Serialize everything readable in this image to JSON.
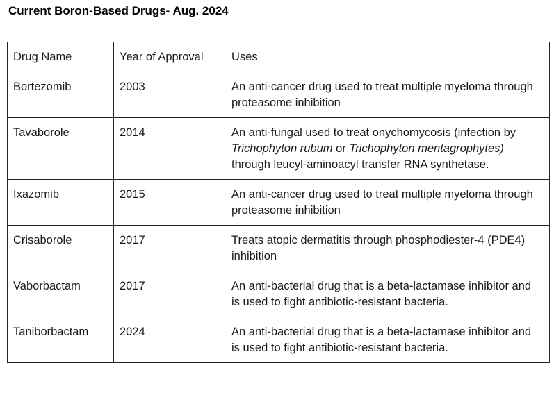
{
  "title": "Current Boron-Based Drugs- Aug. 2024",
  "table": {
    "headers": {
      "name": "Drug Name",
      "year": "Year of Approval",
      "uses": "Uses"
    },
    "rows": [
      {
        "name": "Bortezomib",
        "year": "2003",
        "uses": "An anti-cancer drug used to treat multiple myeloma through proteasome inhibition"
      },
      {
        "name": "Tavaborole",
        "year": "2014",
        "uses_parts": {
          "a": "An anti-fungal used to treat onychomycosis (infection by ",
          "b": "Trichophyton rubum",
          "c": " or ",
          "d": "Trichophyton mentagrophytes)",
          "e": " through leucyl-aminoacyl transfer RNA synthetase."
        }
      },
      {
        "name": "Ixazomib",
        "year": "2015",
        "uses": "An anti-cancer drug used to treat multiple myeloma through proteasome inhibition"
      },
      {
        "name": "Crisaborole",
        "year": "2017",
        "uses": "Treats atopic dermatitis through phosphodiester-4 (PDE4) inhibition"
      },
      {
        "name": "Vaborbactam",
        "year": "2017",
        "uses": "An anti-bacterial drug that is a beta-lactamase inhibitor and is used to fight antibiotic-resistant bacteria."
      },
      {
        "name": "Taniborbactam",
        "year": "2024",
        "uses": "An anti-bacterial drug that is a beta-lactamase inhibitor and is used to fight antibiotic-resistant bacteria."
      }
    ]
  }
}
